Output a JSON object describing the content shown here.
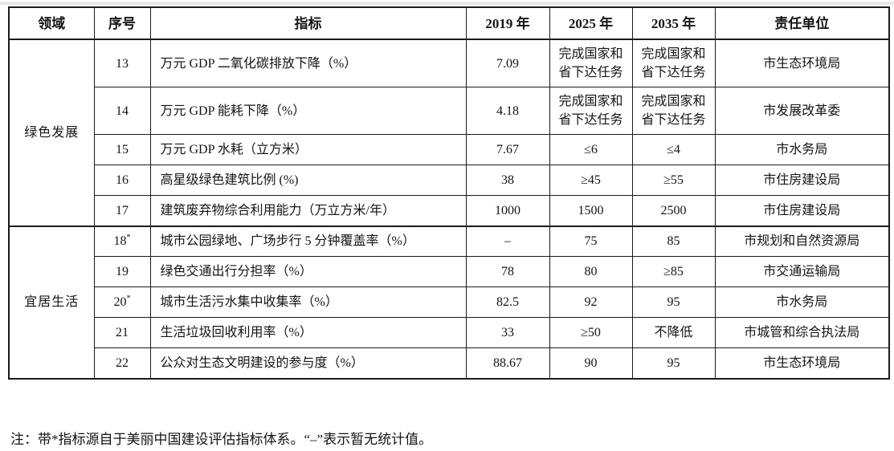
{
  "page": {
    "note": "注：带*指标源自于美丽中国建设评估指标体系。“–”表示暂无统计值。"
  },
  "table": {
    "headers": [
      "领域",
      "序号",
      "指标",
      "2019 年",
      "2025 年",
      "2035 年",
      "责任单位"
    ],
    "sections": [
      {
        "field": "绿色发展",
        "rows": [
          {
            "no": "13",
            "star": "",
            "indicator": "万元 GDP 二氧化碳排放下降（%）",
            "y2019": "7.09",
            "y2025": "完成国家和省下达任务",
            "y2035": "完成国家和省下达任务",
            "unit": "市生态环境局"
          },
          {
            "no": "14",
            "star": "",
            "indicator": "万元 GDP 能耗下降（%）",
            "y2019": "4.18",
            "y2025": "完成国家和省下达任务",
            "y2035": "完成国家和省下达任务",
            "unit": "市发展改革委"
          },
          {
            "no": "15",
            "star": "",
            "indicator": "万元 GDP 水耗（立方米）",
            "y2019": "7.67",
            "y2025": "≤6",
            "y2035": "≤4",
            "unit": "市水务局"
          },
          {
            "no": "16",
            "star": "",
            "indicator": "高星级绿色建筑比例 (%)",
            "y2019": "38",
            "y2025": "≥45",
            "y2035": "≥55",
            "unit": "市住房建设局"
          },
          {
            "no": "17",
            "star": "",
            "indicator": "建筑废弃物综合利用能力（万立方米/年）",
            "y2019": "1000",
            "y2025": "1500",
            "y2035": "2500",
            "unit": "市住房建设局"
          }
        ]
      },
      {
        "field": "宜居生活",
        "rows": [
          {
            "no": "18",
            "star": "*",
            "indicator": "城市公园绿地、广场步行 5 分钟覆盖率（%）",
            "y2019": "–",
            "y2025": "75",
            "y2035": "85",
            "unit": "市规划和自然资源局"
          },
          {
            "no": "19",
            "star": "",
            "indicator": "绿色交通出行分担率（%）",
            "y2019": "78",
            "y2025": "80",
            "y2035": "≥85",
            "unit": "市交通运输局"
          },
          {
            "no": "20",
            "star": "*",
            "indicator": "城市生活污水集中收集率（%）",
            "y2019": "82.5",
            "y2025": "92",
            "y2035": "95",
            "unit": "市水务局"
          },
          {
            "no": "21",
            "star": "",
            "indicator": "生活垃圾回收利用率（%）",
            "y2019": "33",
            "y2025": "≥50",
            "y2035": "不降低",
            "unit": "市城管和综合执法局"
          },
          {
            "no": "22",
            "star": "",
            "indicator": "公众对生态文明建设的参与度（%）",
            "y2019": "88.67",
            "y2025": "90",
            "y2035": "95",
            "unit": "市生态环境局"
          }
        ]
      }
    ]
  }
}
